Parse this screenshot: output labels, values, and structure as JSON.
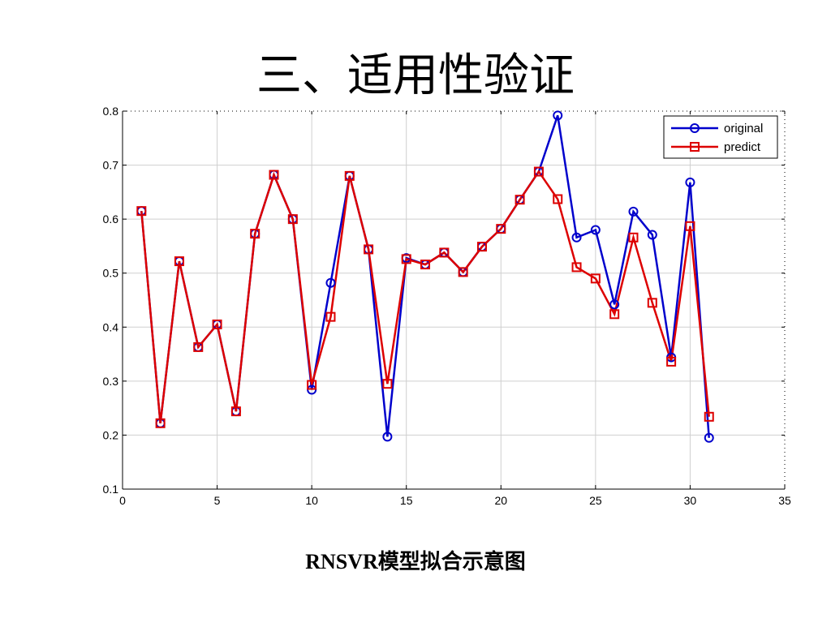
{
  "slide": {
    "title": "三、适用性验证",
    "caption": "RNSVR模型拟合示意图"
  },
  "chart_data": {
    "type": "line",
    "x": [
      1,
      2,
      3,
      4,
      5,
      6,
      7,
      8,
      9,
      10,
      11,
      12,
      13,
      14,
      15,
      16,
      17,
      18,
      19,
      20,
      21,
      22,
      23,
      24,
      25,
      26,
      27,
      28,
      29,
      30,
      31
    ],
    "series": [
      {
        "name": "original",
        "color": "#0000cc",
        "marker": "circle",
        "values": [
          0.615,
          0.222,
          0.522,
          0.363,
          0.405,
          0.244,
          0.573,
          0.682,
          0.6,
          0.284,
          0.482,
          0.68,
          0.544,
          0.197,
          0.528,
          0.516,
          0.538,
          0.502,
          0.549,
          0.582,
          0.636,
          0.688,
          0.792,
          0.566,
          0.58,
          0.442,
          0.614,
          0.571,
          0.344,
          0.668,
          0.195
        ]
      },
      {
        "name": "predict",
        "color": "#dd0000",
        "marker": "square",
        "values": [
          0.615,
          0.222,
          0.522,
          0.363,
          0.405,
          0.244,
          0.573,
          0.682,
          0.6,
          0.293,
          0.419,
          0.68,
          0.544,
          0.295,
          0.526,
          0.516,
          0.538,
          0.502,
          0.549,
          0.582,
          0.636,
          0.688,
          0.637,
          0.511,
          0.49,
          0.424,
          0.566,
          0.445,
          0.336,
          0.587,
          0.234
        ]
      }
    ],
    "xlim": [
      0,
      35
    ],
    "ylim": [
      0.1,
      0.8
    ],
    "xticks": [
      0,
      5,
      10,
      15,
      20,
      25,
      30,
      35
    ],
    "yticks": [
      0.1,
      0.2,
      0.3,
      0.4,
      0.5,
      0.6,
      0.7,
      0.8
    ],
    "xlabel": "",
    "ylabel": "",
    "grid": true,
    "legend_position": "top-right"
  }
}
